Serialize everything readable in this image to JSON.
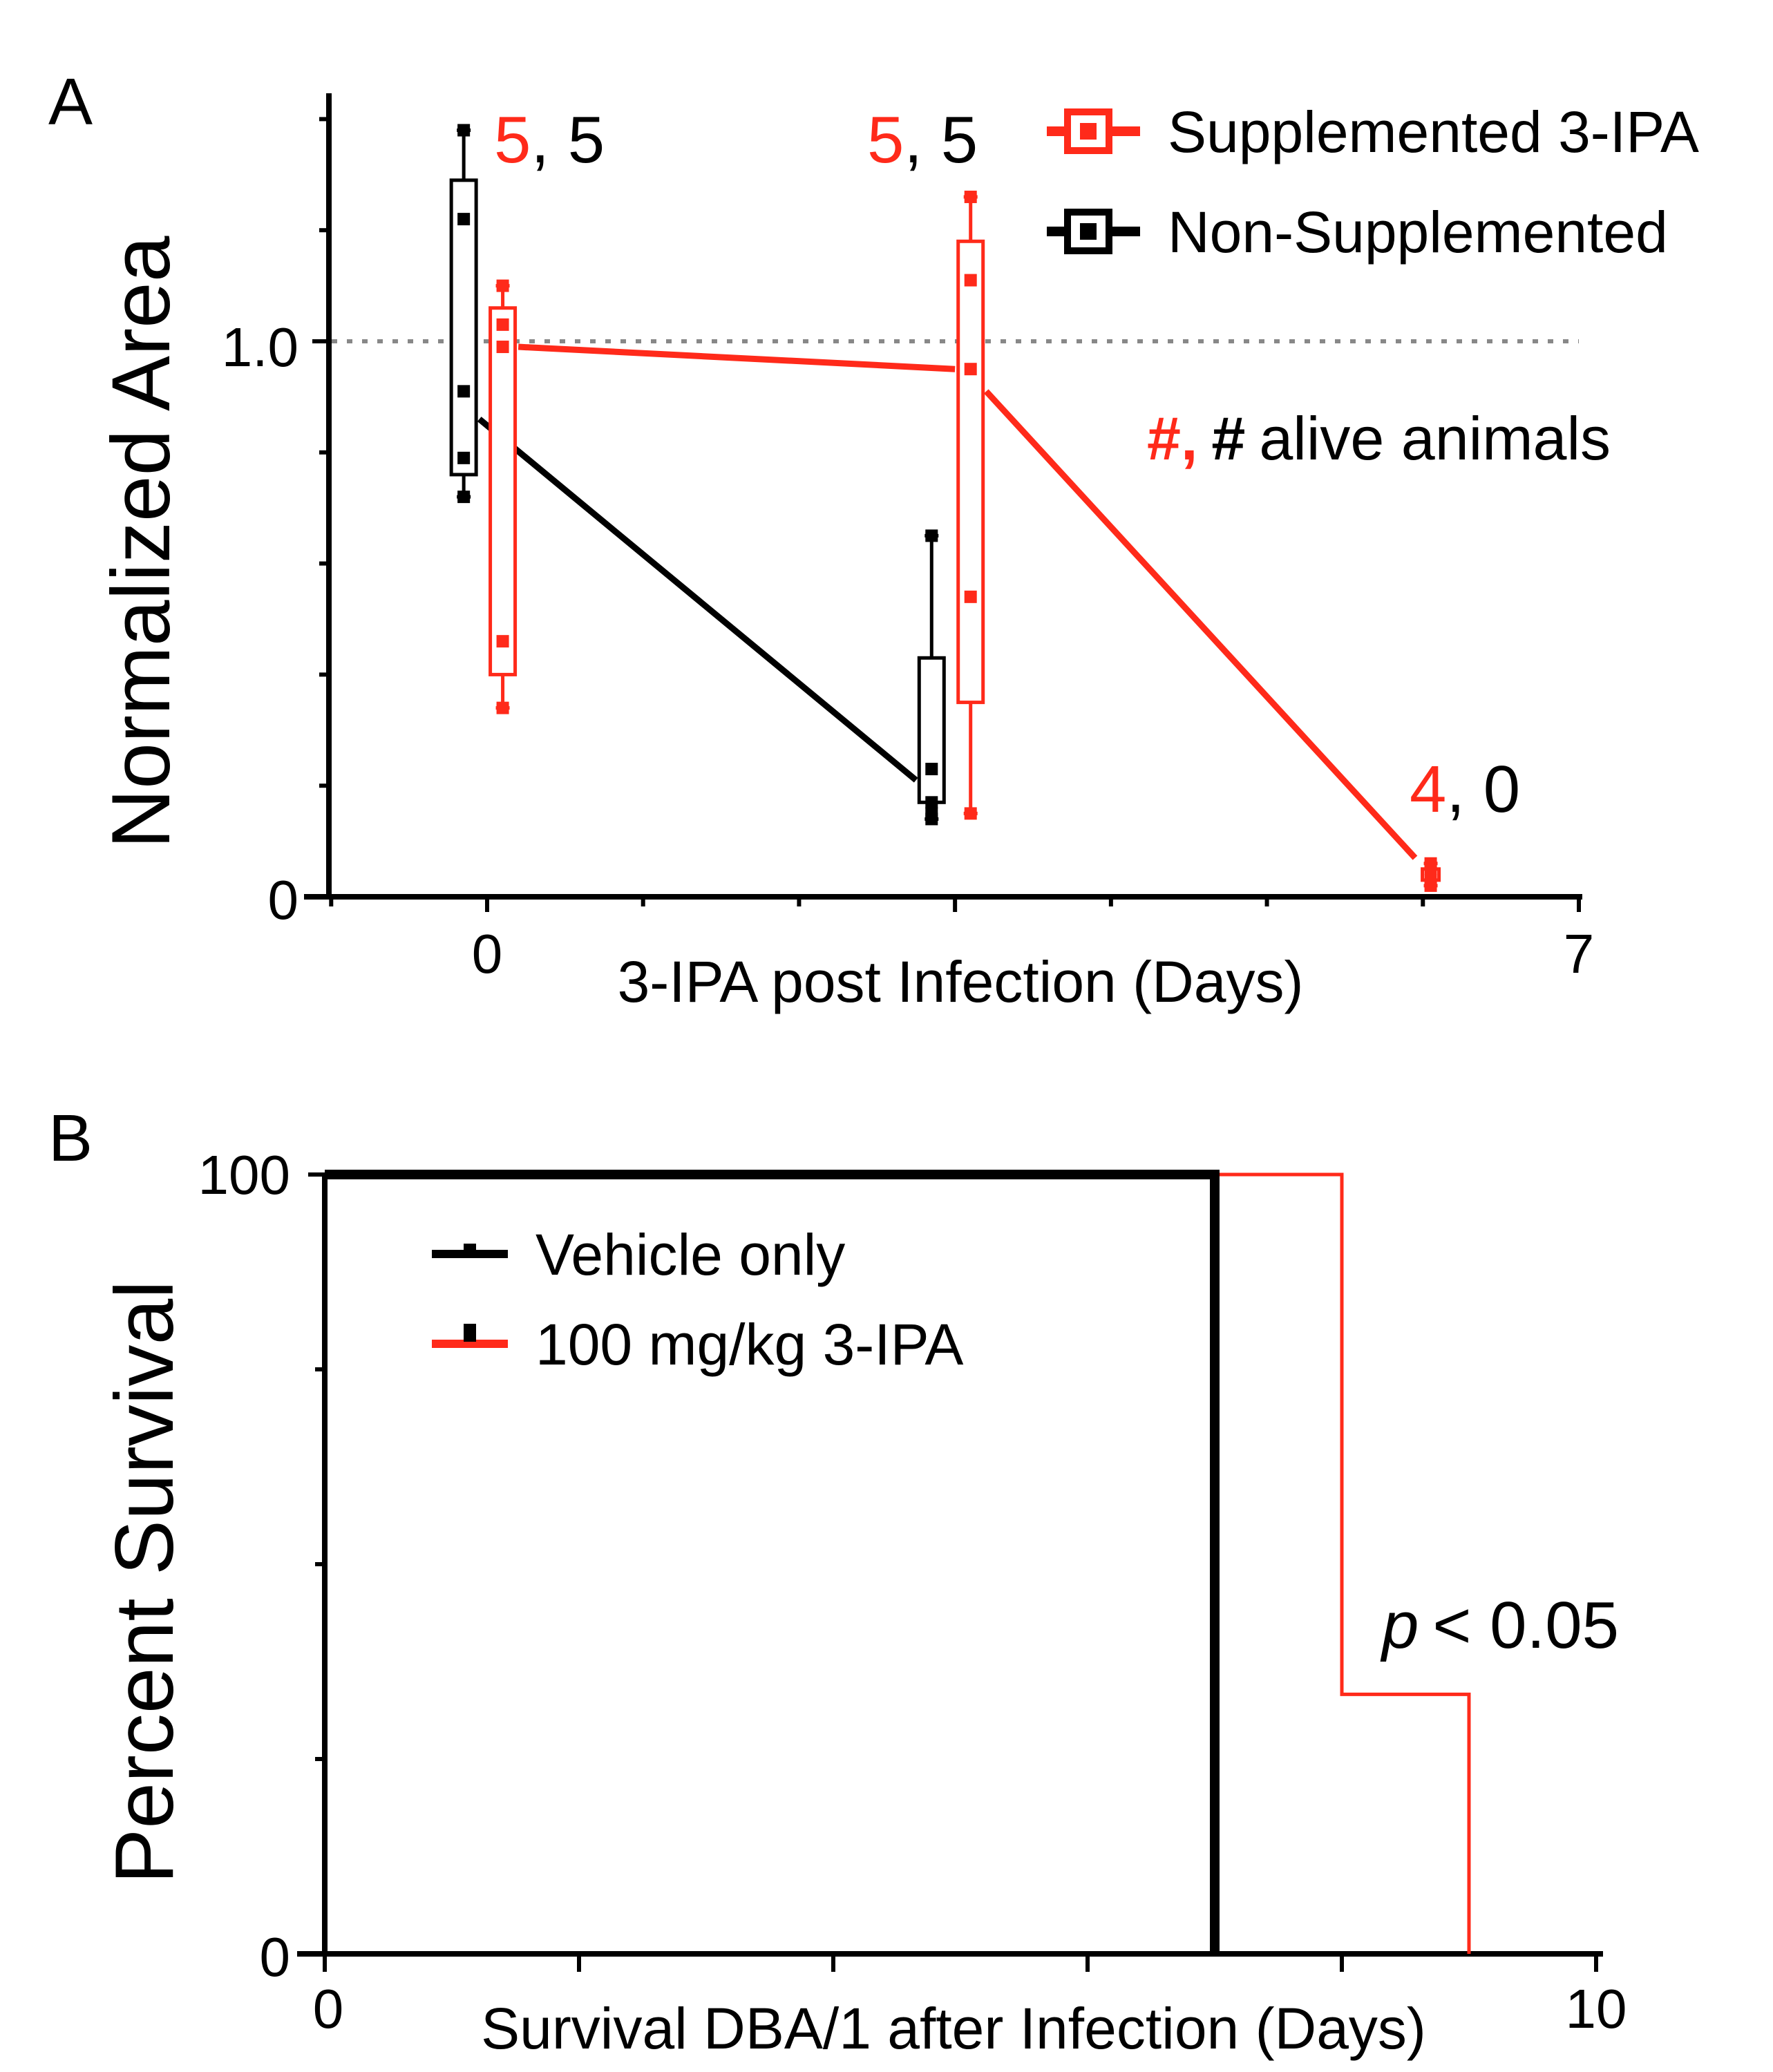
{
  "colors": {
    "red": "#ff2a1a",
    "black": "#000000",
    "dotted": "#888888"
  },
  "chart_data": [
    {
      "panel": "A",
      "type": "box",
      "xlabel": "3-IPA post Infection (Days)",
      "ylabel": "Normalized Area",
      "xlim": [
        -1,
        7
      ],
      "ylim": [
        0,
        1.45
      ],
      "x_tick_labels": [
        "0",
        "7"
      ],
      "y_tick_labels": [
        "0",
        "1.0"
      ],
      "reference_line": 1.0,
      "legend": [
        "Supplemented 3-IPA",
        "Non-Supplemented"
      ],
      "annotation_key": {
        "red_symbol": "#,",
        "black_symbol": "#",
        "text": "alive animals"
      },
      "series": [
        {
          "name": "Non-Supplemented",
          "color": "black",
          "boxes": [
            {
              "x": -0.15,
              "min": 0.72,
              "q1": 0.76,
              "q3": 1.29,
              "max": 1.38,
              "points": [
                1.38,
                1.22,
                0.91,
                0.79,
                0.72
              ],
              "mean": 0.86
            },
            {
              "x": 2.85,
              "min": 0.14,
              "q1": 0.17,
              "q3": 0.43,
              "max": 0.65,
              "points": [
                0.65,
                0.23,
                0.17,
                0.15,
                0.14
              ],
              "mean": 0.21
            }
          ],
          "mean_line_points": [
            [
              -0.05,
              0.86
            ],
            [
              2.75,
              0.21
            ]
          ]
        },
        {
          "name": "Supplemented 3-IPA",
          "color": "red",
          "boxes": [
            {
              "x": 0.1,
              "min": 0.34,
              "q1": 0.4,
              "q3": 1.06,
              "max": 1.1,
              "points": [
                1.1,
                1.03,
                0.99,
                0.46,
                0.34
              ],
              "mean": 0.99
            },
            {
              "x": 3.1,
              "min": 0.15,
              "q1": 0.35,
              "q3": 1.18,
              "max": 1.26,
              "points": [
                1.26,
                1.11,
                0.95,
                0.54,
                0.15
              ],
              "mean": 0.95
            },
            {
              "x": 6.05,
              "min": 0.02,
              "q1": 0.03,
              "q3": 0.05,
              "max": 0.06,
              "points": [
                0.06,
                0.05,
                0.03,
                0.02
              ],
              "mean": 0.04
            }
          ],
          "mean_line_points": [
            [
              0.2,
              0.99
            ],
            [
              3.0,
              0.95
            ],
            [
              3.2,
              0.91
            ],
            [
              5.95,
              0.07
            ]
          ]
        }
      ],
      "alive_counts": [
        {
          "x": 0.0,
          "y": 1.37,
          "red": "5",
          "black": ", 5"
        },
        {
          "x": 3.0,
          "y": 1.37,
          "red": "5",
          "black": ", 5"
        },
        {
          "x": 6.0,
          "y": 0.2,
          "red": "4",
          "black": ", 0"
        }
      ]
    },
    {
      "panel": "B",
      "type": "line",
      "xlabel": "Survival DBA/1 after Infection (Days)",
      "ylabel": "Percent Survival",
      "xlim": [
        0,
        10
      ],
      "ylim": [
        0,
        100
      ],
      "x_tick_labels": [
        "0",
        "10"
      ],
      "y_tick_labels": [
        "0",
        "100"
      ],
      "legend": [
        "Vehicle only",
        "100 mg/kg 3-IPA"
      ],
      "annotation": {
        "p_symbol": "p",
        "text": "< 0.05"
      },
      "series": [
        {
          "name": "Vehicle only",
          "color": "black",
          "x": [
            0,
            7,
            7
          ],
          "y": [
            100,
            100,
            0
          ]
        },
        {
          "name": "100 mg/kg 3-IPA",
          "color": "red",
          "x": [
            7,
            8,
            8,
            9,
            9
          ],
          "y": [
            100,
            100,
            33.3,
            33.3,
            0
          ]
        }
      ]
    }
  ]
}
